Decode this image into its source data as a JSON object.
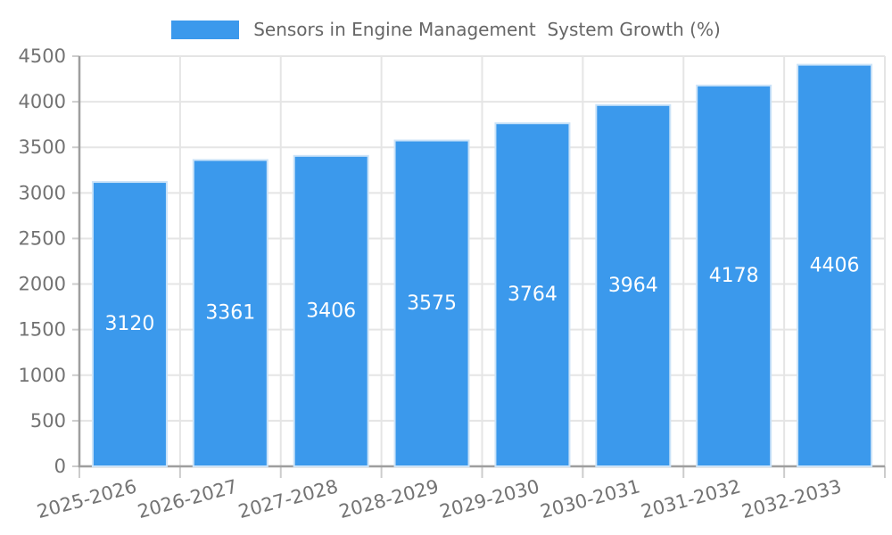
{
  "legend": {
    "position": "top",
    "label": "Sensors in Engine Management  System Growth (%)"
  },
  "chart_data": {
    "type": "bar",
    "title": "Sensors in Engine Management  System Growth (%)",
    "categories": [
      "2025-2026",
      "2026-2027",
      "2027-2028",
      "2028-2029",
      "2029-2030",
      "2030-2031",
      "2031-2032",
      "2032-2033"
    ],
    "values": [
      3120,
      3361,
      3406,
      3575,
      3764,
      3964,
      4178,
      4406
    ],
    "value_labels": "inside-center",
    "xlabel": "",
    "ylabel": "",
    "ylim": [
      0,
      4500
    ],
    "ytick_step": 500,
    "yticks": [
      0,
      500,
      1000,
      1500,
      2000,
      2500,
      3000,
      3500,
      4000,
      4500
    ],
    "grid": true,
    "legend_position": "top",
    "x_label_rotation": -15,
    "colors": {
      "bar": "#3B99EC",
      "bar_border": "#CBE3F8",
      "grid": "#E5E5E5",
      "axis": "#9E9E9E",
      "tick": "#CCCCCC",
      "tick_label": "#737373",
      "value_label": "#FFFFFF",
      "legend_text": "#666666",
      "background": "#FFFFFF"
    }
  }
}
